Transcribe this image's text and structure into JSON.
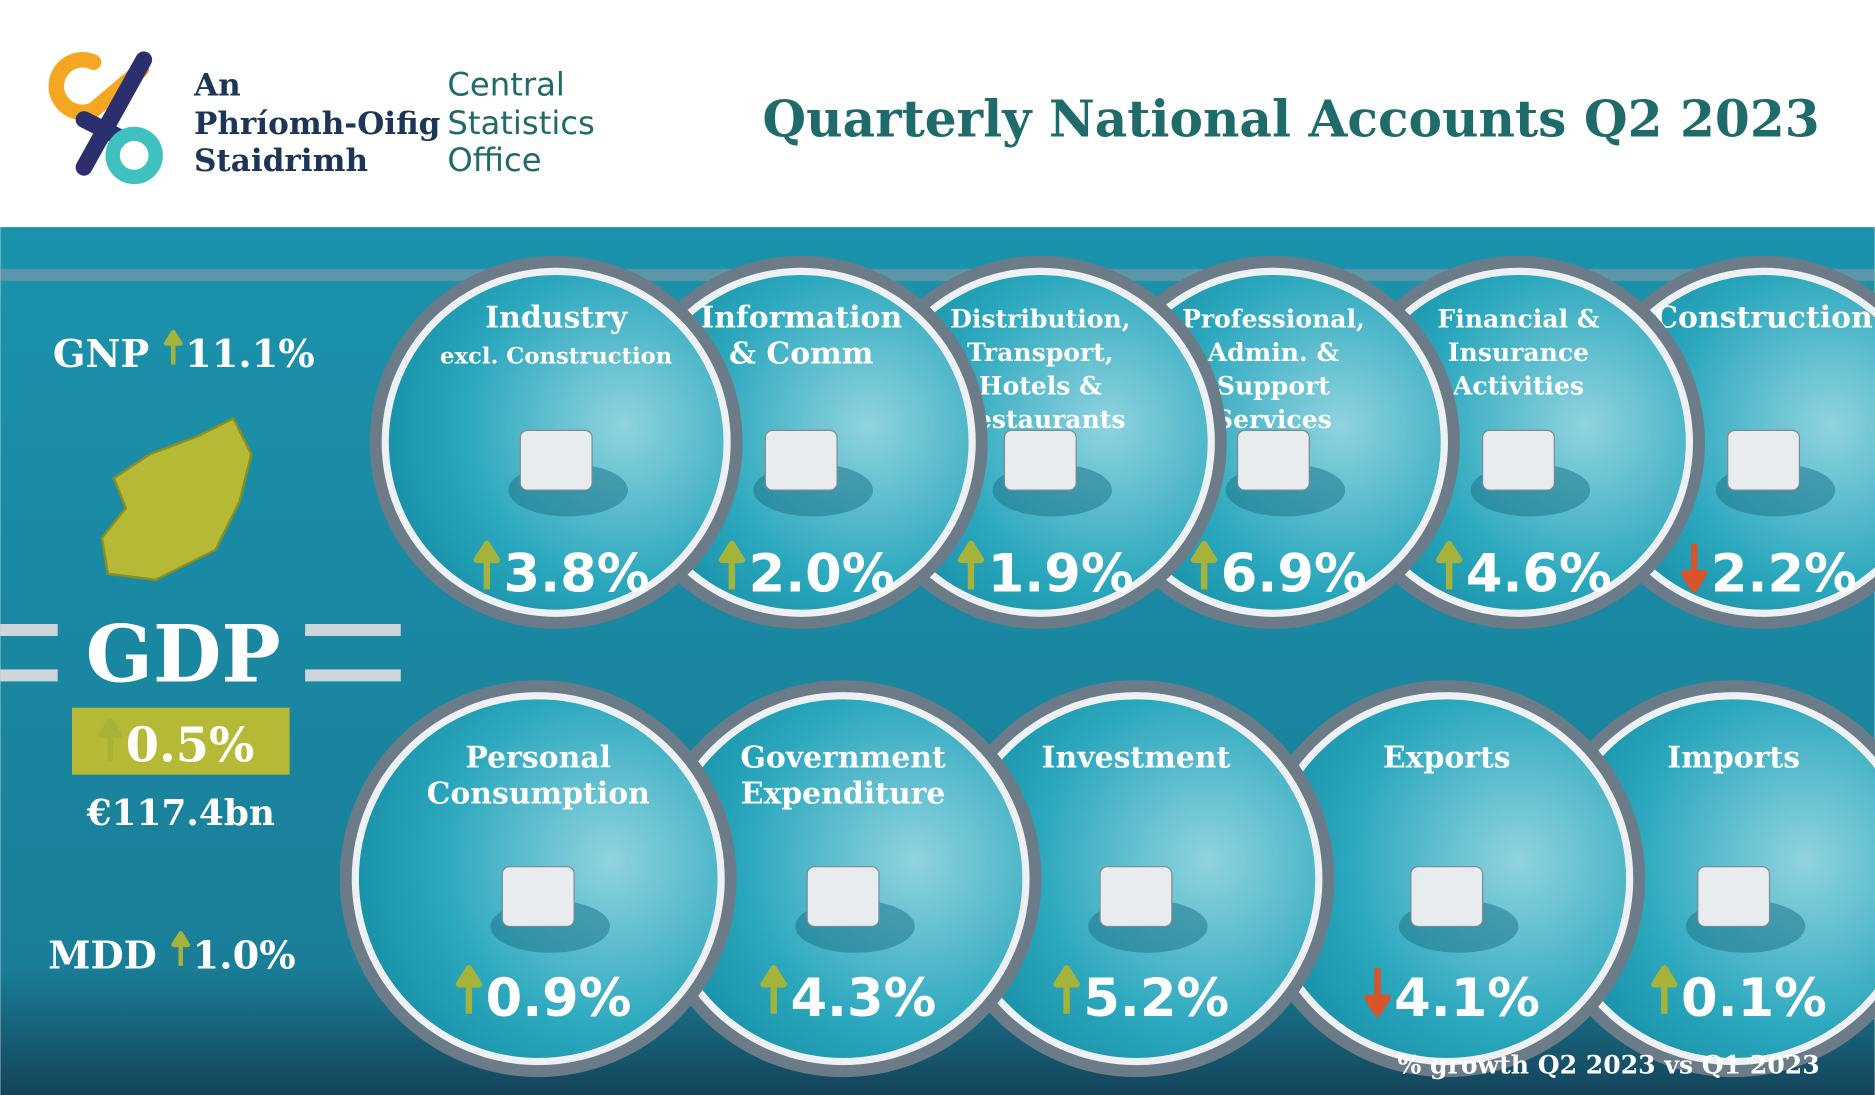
{
  "header": {
    "logo_irish": [
      "An",
      "Phríomh-Oifig",
      "Staidrimh"
    ],
    "logo_english": [
      "Central",
      "Statistics",
      "Office"
    ],
    "title": "Quarterly National Accounts Q2 2023"
  },
  "summary": {
    "gnp": {
      "label": "GNP",
      "value": "11.1%",
      "direction": "up"
    },
    "gdp": {
      "label": "GDP",
      "value": "0.5%",
      "direction": "up",
      "amount": "€117.4bn"
    },
    "mdd": {
      "label": "MDD",
      "value": "1.0%",
      "direction": "up"
    }
  },
  "sectors": [
    {
      "label": [
        "Industry",
        "excl. Construction"
      ],
      "value": "3.8%",
      "direction": "up"
    },
    {
      "label": [
        "Information",
        "& Comm"
      ],
      "value": "2.0%",
      "direction": "up"
    },
    {
      "label": [
        "Distribution,",
        "Transport,",
        "Hotels &",
        "Restaurants"
      ],
      "value": "1.9%",
      "direction": "up"
    },
    {
      "label": [
        "Professional,",
        "Admin. &",
        "Support",
        "Services"
      ],
      "value": "6.9%",
      "direction": "up"
    },
    {
      "label": [
        "Financial &",
        "Insurance",
        "Activities"
      ],
      "value": "4.6%",
      "direction": "up"
    },
    {
      "label": [
        "Construction"
      ],
      "value": "2.2%",
      "direction": "down"
    }
  ],
  "expenditure": [
    {
      "label": [
        "Personal",
        "Consumption"
      ],
      "value": "0.9%",
      "direction": "up"
    },
    {
      "label": [
        "Government",
        "Expenditure"
      ],
      "value": "4.3%",
      "direction": "up"
    },
    {
      "label": [
        "Investment"
      ],
      "value": "5.2%",
      "direction": "up"
    },
    {
      "label": [
        "Exports"
      ],
      "value": "4.1%",
      "direction": "down"
    },
    {
      "label": [
        "Imports"
      ],
      "value": "0.1%",
      "direction": "up"
    }
  ],
  "footnote": "% growth Q2 2023 vs Q1 2023"
}
